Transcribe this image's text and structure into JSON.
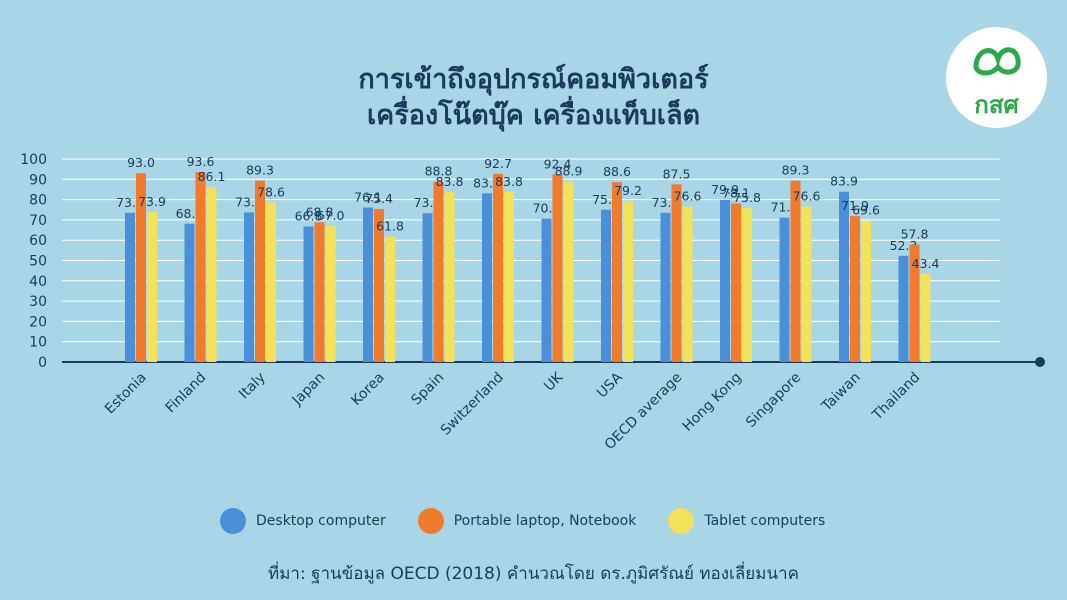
{
  "chart_data": {
    "type": "bar",
    "title_lines": [
      "การเข้าถึงอุปกรณ์คอมพิวเตอร์",
      "เครื่องโน๊ตบุ๊ค เครื่องแท็บเล็ต"
    ],
    "categories": [
      "Estonia",
      "Finland",
      "Italy",
      "Japan",
      "Korea",
      "Spain",
      "Switzerland",
      "UK",
      "USA",
      "OECD average",
      "Hong Kong",
      "Singapore",
      "Taiwan",
      "Thailand"
    ],
    "series": [
      {
        "name": "Desktop computer",
        "color": "#4a90d9",
        "values": [
          73.5,
          68.1,
          73.7,
          66.8,
          76.1,
          73.3,
          83.1,
          70.6,
          75.0,
          73.5,
          79.9,
          71.1,
          83.9,
          52.3
        ]
      },
      {
        "name": "Portable laptop, Notebook",
        "color": "#f07b2c",
        "values": [
          93.0,
          93.6,
          89.3,
          68.8,
          75.4,
          88.8,
          92.7,
          92.4,
          88.6,
          87.5,
          78.1,
          89.3,
          71.9,
          57.8
        ]
      },
      {
        "name": "Tablet computers",
        "color": "#f2e25a",
        "values": [
          73.9,
          86.1,
          78.6,
          67.0,
          61.8,
          83.8,
          83.8,
          88.9,
          79.2,
          76.6,
          75.8,
          76.6,
          69.6,
          43.4
        ]
      }
    ],
    "yticks": [
      0,
      10,
      20,
      30,
      40,
      50,
      60,
      70,
      80,
      90,
      100
    ],
    "ylim": [
      0,
      100
    ],
    "grid": true,
    "legend_position": "bottom"
  },
  "logo_text": "กสศ",
  "source_text": "ที่มา: ฐานข้อมูล OECD (2018) คำนวณโดย ดร.ภูมิศรัณย์ ทองเลี่ยมนาค"
}
